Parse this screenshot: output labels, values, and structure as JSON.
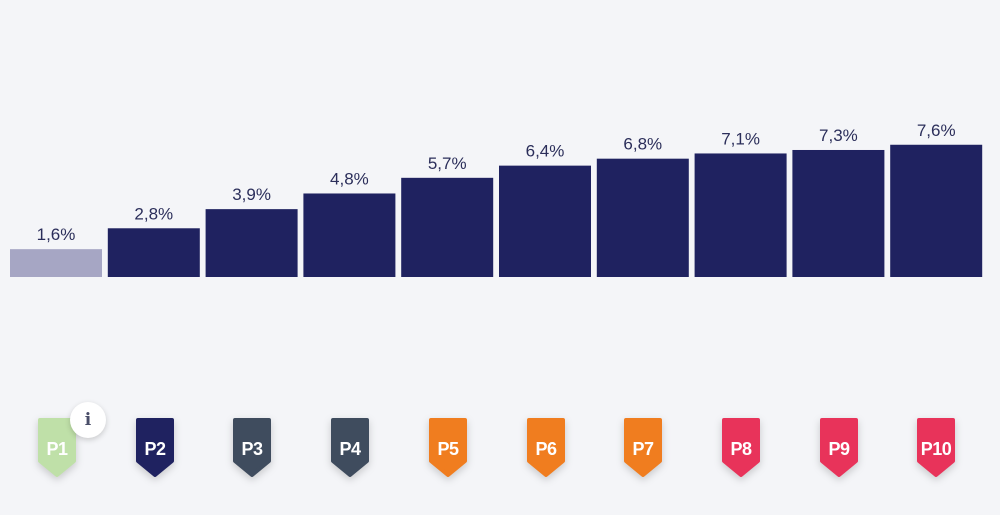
{
  "chart_data": {
    "type": "bar",
    "categories": [
      "P1",
      "P2",
      "P3",
      "P4",
      "P5",
      "P6",
      "P7",
      "P8",
      "P9",
      "P10"
    ],
    "values": [
      1.6,
      2.8,
      3.9,
      4.8,
      5.7,
      6.4,
      6.8,
      7.1,
      7.3,
      7.6
    ],
    "data_labels": [
      "1,6%",
      "2,8%",
      "3,9%",
      "4,8%",
      "5,7%",
      "6,4%",
      "6,8%",
      "7,1%",
      "7,3%",
      "7,6%"
    ],
    "bar_colors": [
      "#a6a6c4",
      "#1f2260",
      "#1f2260",
      "#1f2260",
      "#1f2260",
      "#1f2260",
      "#1f2260",
      "#1f2260",
      "#1f2260",
      "#1f2260"
    ],
    "ylim": [
      0,
      10
    ],
    "grid": false,
    "legend": "none"
  },
  "badges": [
    {
      "label": "P1",
      "color": "#bfe0a8"
    },
    {
      "label": "P2",
      "color": "#1f2260"
    },
    {
      "label": "P3",
      "color": "#3f4c5e"
    },
    {
      "label": "P4",
      "color": "#3f4c5e"
    },
    {
      "label": "P5",
      "color": "#f07d1f"
    },
    {
      "label": "P6",
      "color": "#f07d1f"
    },
    {
      "label": "P7",
      "color": "#f07d1f"
    },
    {
      "label": "P8",
      "color": "#e8335a"
    },
    {
      "label": "P9",
      "color": "#e8335a"
    },
    {
      "label": "P10",
      "color": "#e8335a"
    }
  ],
  "info_button": {
    "icon": "info-icon",
    "glyph": "i"
  }
}
